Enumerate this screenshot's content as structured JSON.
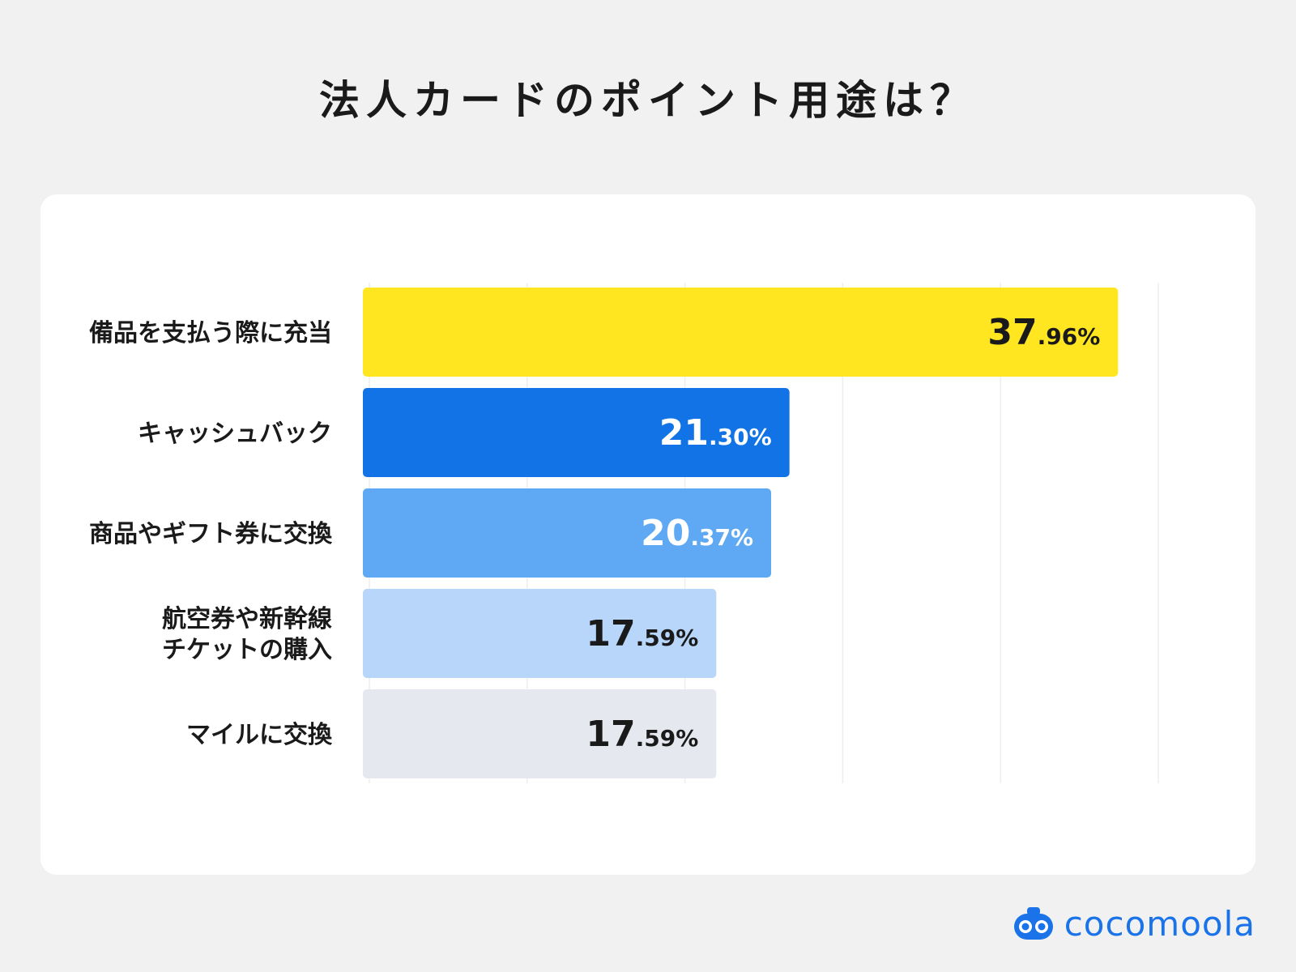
{
  "chart_data": {
    "type": "bar",
    "orientation": "horizontal",
    "title": "法人カードのポイント用途は？",
    "categories": [
      [
        "備品を支払う際に充当"
      ],
      [
        "キャッシュバック"
      ],
      [
        "商品やギフト券に交換"
      ],
      [
        "航空券や新幹線",
        "チケットの購入"
      ],
      [
        "マイルに交換"
      ]
    ],
    "values": [
      37.96,
      21.3,
      20.37,
      17.59,
      17.59
    ],
    "value_labels": [
      {
        "int": "37",
        "dec": ".96%"
      },
      {
        "int": "21",
        "dec": ".30%"
      },
      {
        "int": "20",
        "dec": ".37%"
      },
      {
        "int": "17",
        "dec": ".59%"
      },
      {
        "int": "17",
        "dec": ".59%"
      }
    ],
    "bar_colors": [
      "#ffe620",
      "#1173e6",
      "#5fa9f4",
      "#b7d6f9",
      "#e5e9ef"
    ],
    "label_colors": [
      "#1a1a1a",
      "#ffffff",
      "#ffffff",
      "#1a1a1a",
      "#1a1a1a"
    ],
    "xlim": [
      0,
      40
    ],
    "grid": true,
    "xlabel": "",
    "ylabel": ""
  },
  "brand": {
    "name": "cocomoola",
    "color": "#1a73e8"
  }
}
